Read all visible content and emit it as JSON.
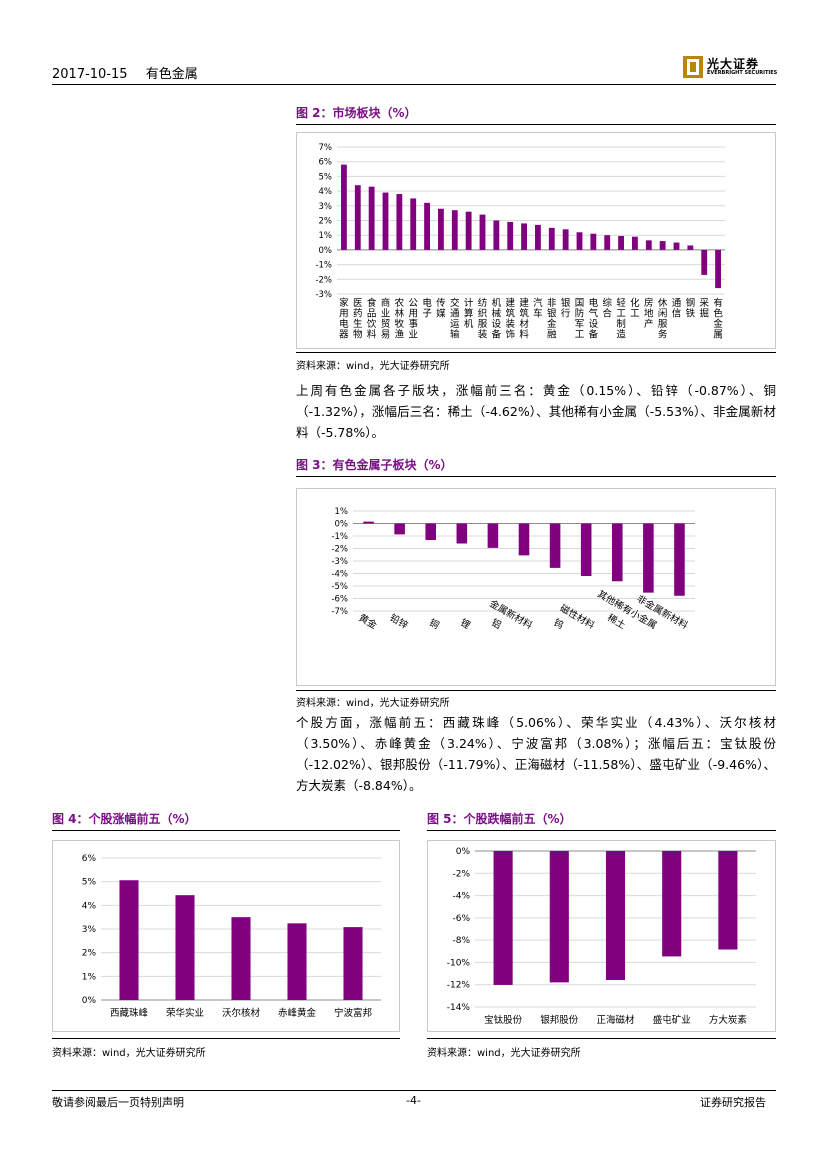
{
  "header": {
    "date": "2017-10-15",
    "section": "有色金属",
    "logo_cn": "光大证券",
    "logo_en": "EVERBRIGHT SECURITIES"
  },
  "fig2": {
    "title": "图 2：市场板块（%）",
    "source": "资料来源：wind，光大证券研究所",
    "chart_data": {
      "type": "bar",
      "title": "图 2：市场板块（%）",
      "ylim": [
        -3,
        7
      ],
      "yticks": [
        "7%",
        "6%",
        "5%",
        "4%",
        "3%",
        "2%",
        "1%",
        "0%",
        "-1%",
        "-2%",
        "-3%"
      ],
      "categories": [
        "家用电器",
        "医药生物",
        "食品饮料",
        "商业贸易",
        "农林牧渔",
        "公用事业",
        "电子",
        "传媒",
        "交通运输",
        "计算机",
        "纺织服装",
        "机械设备",
        "建筑装饰",
        "建筑材料",
        "汽车",
        "非银金融",
        "银行",
        "国防军工",
        "电气设备",
        "综合",
        "轻工制造",
        "化工",
        "房地产",
        "休闲服务",
        "通信",
        "钢铁",
        "采掘",
        "有色金属"
      ],
      "values": [
        5.8,
        4.4,
        4.3,
        3.9,
        3.8,
        3.5,
        3.2,
        2.8,
        2.7,
        2.6,
        2.4,
        2.0,
        1.9,
        1.8,
        1.7,
        1.5,
        1.4,
        1.2,
        1.1,
        1.0,
        0.95,
        0.9,
        0.65,
        0.6,
        0.5,
        0.3,
        -1.7,
        -2.6
      ],
      "color": "#800080"
    }
  },
  "para1": "上周有色金属各子版块，涨幅前三名：黄金（0.15%）、铅锌（-0.87%）、铜（-1.32%），涨幅后三名：稀土（-4.62%）、其他稀有小金属（-5.53%）、非金属新材料（-5.78%）。",
  "fig3": {
    "title": "图 3：有色金属子板块（%）",
    "source": "资料来源：wind，光大证券研究所",
    "chart_data": {
      "type": "bar",
      "title": "图 3：有色金属子板块（%）",
      "ylim": [
        -7,
        1
      ],
      "yticks": [
        "1%",
        "0%",
        "-1%",
        "-2%",
        "-3%",
        "-4%",
        "-5%",
        "-6%",
        "-7%"
      ],
      "categories": [
        "黄金",
        "铅锌",
        "铜",
        "锂",
        "铝",
        "金属新材料",
        "钨",
        "磁性材料",
        "稀土",
        "其他稀有小金属",
        "非金属新材料"
      ],
      "values": [
        0.15,
        -0.87,
        -1.32,
        -1.6,
        -1.95,
        -2.55,
        -3.55,
        -4.2,
        -4.62,
        -5.53,
        -5.78
      ],
      "color": "#800080"
    }
  },
  "para2": "个股方面，涨幅前五：西藏珠峰（5.06%）、荣华实业（4.43%）、沃尔核材（3.50%）、赤峰黄金（3.24%）、宁波富邦（3.08%）；涨幅后五：宝钛股份（-12.02%）、银邦股份（-11.79%）、正海磁材（-11.58%）、盛屯矿业（-9.46%）、方大炭素（-8.84%）。",
  "fig4": {
    "title": "图 4：个股涨幅前五（%）",
    "source": "资料来源：wind，光大证券研究所",
    "chart_data": {
      "type": "bar",
      "title": "图 4：个股涨幅前五（%）",
      "ylim": [
        0,
        6
      ],
      "yticks": [
        "6%",
        "5%",
        "4%",
        "3%",
        "2%",
        "1%",
        "0%"
      ],
      "categories": [
        "西藏珠峰",
        "荣华实业",
        "沃尔核材",
        "赤峰黄金",
        "宁波富邦"
      ],
      "values": [
        5.06,
        4.43,
        3.5,
        3.24,
        3.08
      ],
      "color": "#800080"
    }
  },
  "fig5": {
    "title": "图 5：个股跌幅前五（%）",
    "source": "资料来源：wind，光大证券研究所",
    "chart_data": {
      "type": "bar",
      "title": "图 5：个股跌幅前五（%）",
      "ylim": [
        -14,
        0
      ],
      "yticks": [
        "0%",
        "-2%",
        "-4%",
        "-6%",
        "-8%",
        "-10%",
        "-12%",
        "-14%"
      ],
      "categories": [
        "宝钛股份",
        "银邦股份",
        "正海磁材",
        "盛屯矿业",
        "方大炭素"
      ],
      "values": [
        -12.02,
        -11.79,
        -11.58,
        -9.46,
        -8.84
      ],
      "color": "#800080"
    }
  },
  "footer": {
    "left": "敬请参阅最后一页特别声明",
    "center": "-4-",
    "right": "证券研究报告"
  }
}
